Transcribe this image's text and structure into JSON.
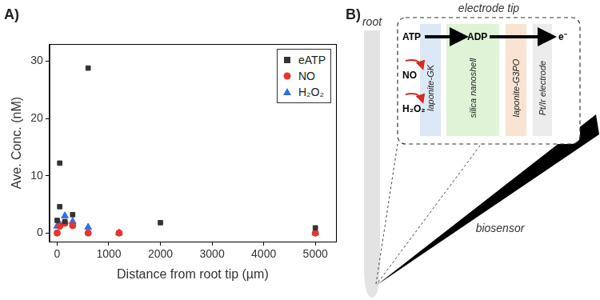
{
  "panel_labels": [
    "A)",
    "B)"
  ],
  "chart_data": {
    "type": "scatter",
    "x_label": "Distance from root tip (µm)",
    "y_label": "Ave. Conc. (nM)",
    "xlim": [
      -150,
      5400
    ],
    "xticks": [
      0,
      1000,
      2000,
      3000,
      4000,
      5000
    ],
    "ylim": [
      -1.5,
      33
    ],
    "yticks": [
      0,
      10,
      20,
      30
    ],
    "grid": false,
    "legend": "upper right",
    "series": [
      {
        "name": "eATP",
        "color": "#333333",
        "marker": "square",
        "x": [
          0,
          50,
          50,
          150,
          300,
          600,
          2000,
          5000
        ],
        "values": [
          2.2,
          12.2,
          4.6,
          2.0,
          3.2,
          28.8,
          1.8,
          0.9
        ]
      },
      {
        "name": "NO",
        "color": "#e8352b",
        "marker": "circle",
        "x": [
          0,
          50,
          150,
          300,
          600,
          1200,
          5000
        ],
        "values": [
          0,
          1.2,
          1.7,
          1.3,
          0,
          0,
          0
        ]
      },
      {
        "name": "H₂O₂",
        "color": "#2f6ee8",
        "marker": "triangle",
        "x": [
          0,
          50,
          150,
          300,
          600,
          1200,
          5000
        ],
        "values": [
          1.2,
          1.5,
          3.0,
          2.0,
          1.0,
          0,
          0
        ]
      }
    ]
  },
  "diagram": {
    "root_label": "root",
    "tip_label": "electrode tip",
    "sensor_label": "biosensor",
    "substrate": "ATP",
    "product": "ADP",
    "electron": "e⁻",
    "inhibitors": [
      "NO",
      "H₂O₂"
    ],
    "layers": [
      {
        "label": "laponite-GK",
        "color": "#dce8f5"
      },
      {
        "label": "silica nanoshell",
        "color": "#dff3d6"
      },
      {
        "label": "laponite-G3PO",
        "color": "#f8e3d2"
      },
      {
        "label": "Pt/Ir electrode",
        "color": "#ececec"
      }
    ]
  }
}
